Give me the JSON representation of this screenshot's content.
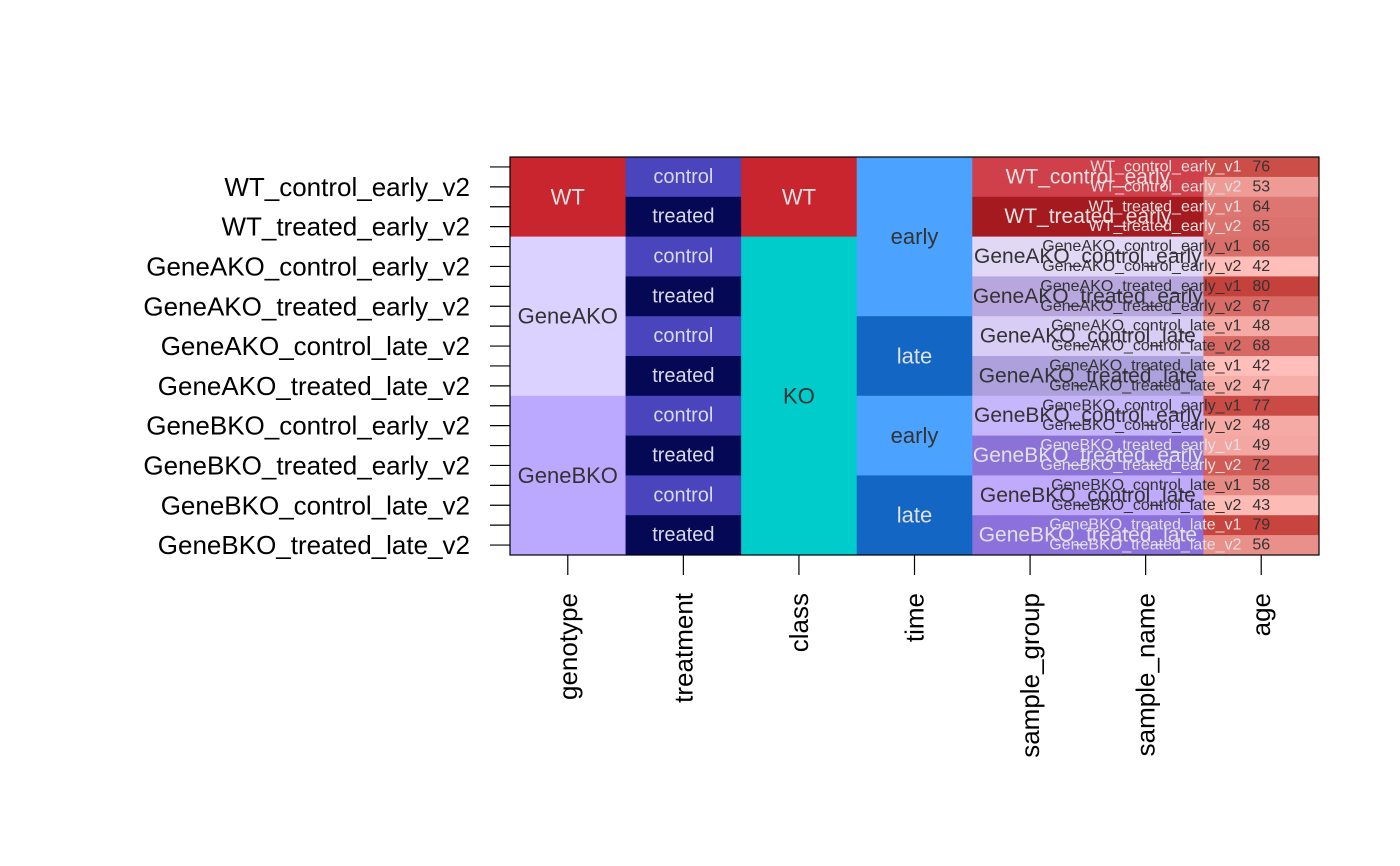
{
  "chart_data": {
    "type": "heatmap",
    "title": "",
    "xlabel": "",
    "ylabel": "",
    "grid": false,
    "columns": [
      "genotype",
      "treatment",
      "class",
      "time",
      "sample_group",
      "sample_name",
      "age"
    ],
    "row_labels": [
      "WT_control_early_v2",
      "WT_treated_early_v2",
      "GeneAKO_control_early_v2",
      "GeneAKO_treated_early_v2",
      "GeneAKO_control_late_v2",
      "GeneAKO_treated_late_v2",
      "GeneBKO_control_early_v2",
      "GeneBKO_treated_early_v2",
      "GeneBKO_control_late_v2",
      "GeneBKO_treated_late_v2"
    ],
    "genotype_blocks": [
      {
        "label": "WT",
        "start": 0,
        "size": 4,
        "color": "#c9252f",
        "text_color": "#e0e0e0"
      },
      {
        "label": "GeneAKO",
        "start": 4,
        "size": 8,
        "color": "#dcd2ff",
        "text_color": "#333333"
      },
      {
        "label": "GeneBKO",
        "start": 12,
        "size": 8,
        "color": "#bba8ff",
        "text_color": "#333333"
      }
    ],
    "treatment_blocks": [
      {
        "label": "control",
        "start": 0,
        "size": 2
      },
      {
        "label": "treated",
        "start": 2,
        "size": 2
      },
      {
        "label": "control",
        "start": 4,
        "size": 2
      },
      {
        "label": "treated",
        "start": 6,
        "size": 2
      },
      {
        "label": "control",
        "start": 8,
        "size": 2
      },
      {
        "label": "treated",
        "start": 10,
        "size": 2
      },
      {
        "label": "control",
        "start": 12,
        "size": 2
      },
      {
        "label": "treated",
        "start": 14,
        "size": 2
      },
      {
        "label": "control",
        "start": 16,
        "size": 2
      },
      {
        "label": "treated",
        "start": 18,
        "size": 2
      }
    ],
    "treatment_colors": {
      "control": "#4a45bd",
      "treated": "#050854"
    },
    "class_blocks": [
      {
        "label": "WT",
        "start": 0,
        "size": 4,
        "color": "#c9252f",
        "text_color": "#e0e0e0"
      },
      {
        "label": "KO",
        "start": 4,
        "size": 16,
        "color": "#00cccc",
        "text_color": "#333333"
      }
    ],
    "time_blocks": [
      {
        "label": "early",
        "start": 0,
        "size": 8,
        "color": "#4ca3ff",
        "text_color": "#333333"
      },
      {
        "label": "late",
        "start": 8,
        "size": 4,
        "color": "#1466c4",
        "text_color": "#e0e0e0"
      },
      {
        "label": "early",
        "start": 12,
        "size": 4,
        "color": "#4ca3ff",
        "text_color": "#333333"
      },
      {
        "label": "late",
        "start": 16,
        "size": 4,
        "color": "#1466c4",
        "text_color": "#e0e0e0"
      }
    ],
    "sample_group_blocks": [
      {
        "label": "WT_control_early",
        "start": 0,
        "size": 2,
        "color": "#d0404a",
        "text_color": "#e0e0e0"
      },
      {
        "label": "WT_treated_early",
        "start": 2,
        "size": 2,
        "color": "#a51a1f",
        "text_color": "#e0e0e0"
      },
      {
        "label": "GeneAKO_control_early",
        "start": 4,
        "size": 2,
        "color": "#e0d8f5",
        "text_color": "#333333"
      },
      {
        "label": "GeneAKO_treated_early",
        "start": 6,
        "size": 2,
        "color": "#b8a6de",
        "text_color": "#333333"
      },
      {
        "label": "GeneAKO_control_late",
        "start": 8,
        "size": 2,
        "color": "#d8cef5",
        "text_color": "#333333"
      },
      {
        "label": "GeneAKO_treated_late",
        "start": 10,
        "size": 2,
        "color": "#aca1dc",
        "text_color": "#333333"
      },
      {
        "label": "GeneBKO_control_early",
        "start": 12,
        "size": 2,
        "color": "#c6b6fb",
        "text_color": "#333333"
      },
      {
        "label": "GeneBKO_treated_early",
        "start": 14,
        "size": 2,
        "color": "#8a72d6",
        "text_color": "#e0e0e0"
      },
      {
        "label": "GeneBKO_control_late",
        "start": 16,
        "size": 2,
        "color": "#bfaafb",
        "text_color": "#333333"
      },
      {
        "label": "GeneBKO_treated_late",
        "start": 18,
        "size": 2,
        "color": "#8c70db",
        "text_color": "#e0e0e0"
      }
    ],
    "sample_names": [
      "WT_control_early_v1",
      "WT_control_early_v2",
      "WT_treated_early_v1",
      "WT_treated_early_v2",
      "GeneAKO_control_early_v1",
      "GeneAKO_control_early_v2",
      "GeneAKO_treated_early_v1",
      "GeneAKO_treated_early_v2",
      "GeneAKO_control_late_v1",
      "GeneAKO_control_late_v2",
      "GeneAKO_treated_late_v1",
      "GeneAKO_treated_late_v2",
      "GeneBKO_control_early_v1",
      "GeneBKO_control_early_v2",
      "GeneBKO_treated_early_v1",
      "GeneBKO_treated_early_v2",
      "GeneBKO_control_late_v1",
      "GeneBKO_control_late_v2",
      "GeneBKO_treated_late_v1",
      "GeneBKO_treated_late_v2"
    ],
    "ages": [
      76,
      53,
      64,
      65,
      66,
      42,
      80,
      67,
      48,
      68,
      42,
      47,
      77,
      48,
      49,
      72,
      58,
      43,
      79,
      56
    ]
  }
}
